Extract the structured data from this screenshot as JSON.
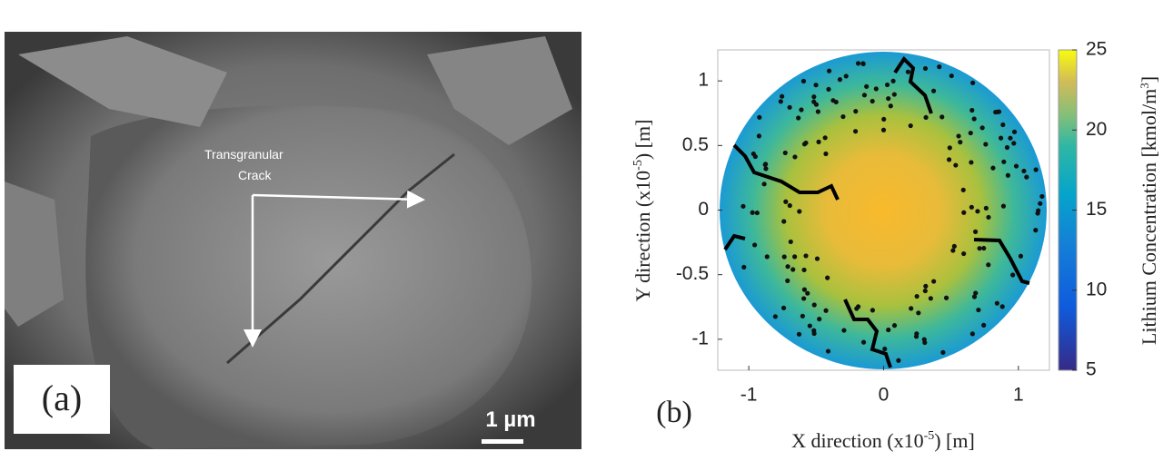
{
  "panel_a": {
    "label": "(a)",
    "annotation": [
      "Transgranular",
      "Crack"
    ],
    "scale_bar": "1 µm"
  },
  "panel_b": {
    "label": "(b)",
    "x_label": {
      "before": "X direction (x10",
      "sup": "-5",
      "after": ") [m]"
    },
    "y_label": {
      "before": "Y direction (x10",
      "sup": "-5",
      "after": ") [m]"
    },
    "colorbar_label": {
      "before": "Lithium Concentration [kmol/m",
      "sup": "3",
      "after": "]"
    },
    "xlim": [
      -1.23,
      1.23
    ],
    "ylim": [
      -1.24,
      1.24
    ],
    "xticks": [
      -1,
      0,
      1
    ],
    "yticks": [
      1,
      0.5,
      0,
      -0.5,
      -1
    ],
    "clim": [
      5,
      25
    ],
    "cticks": [
      5,
      10,
      15,
      20,
      25
    ]
  }
}
